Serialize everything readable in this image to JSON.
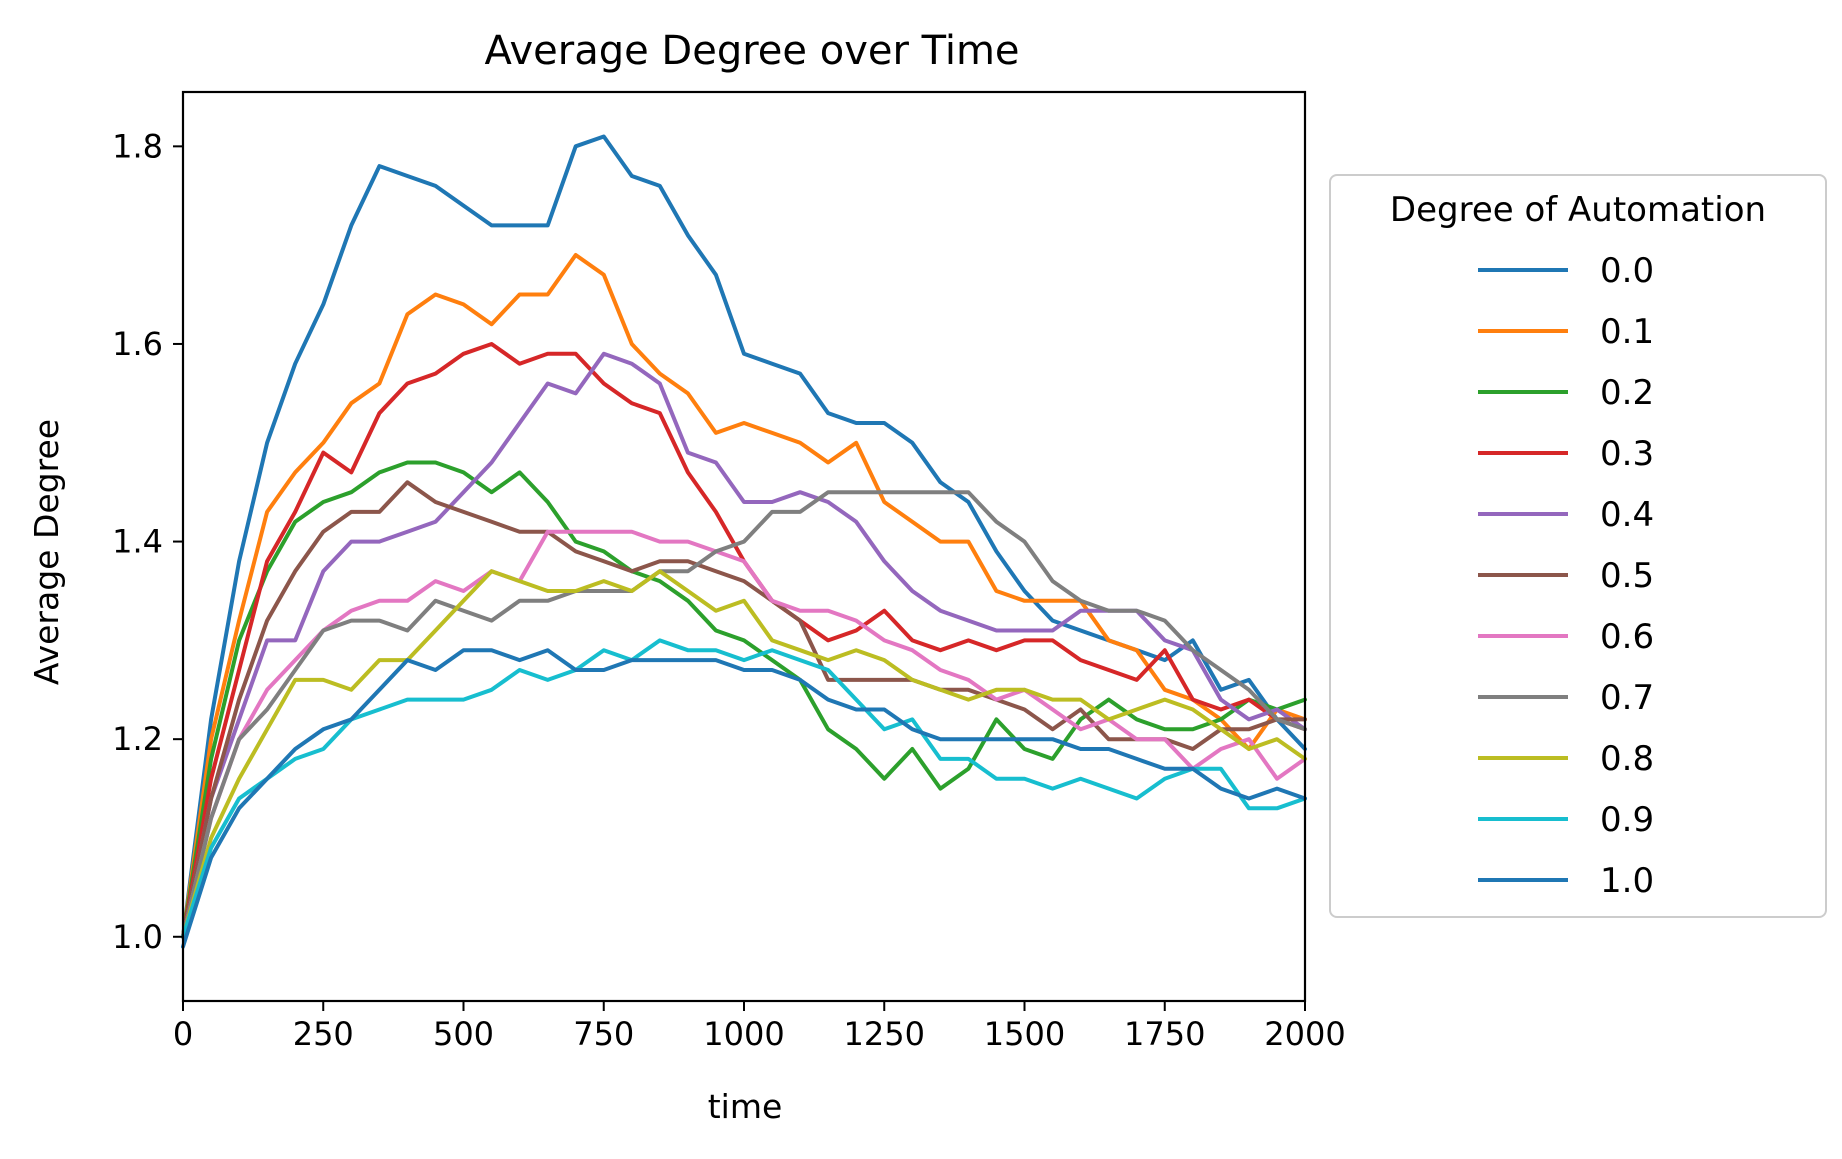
{
  "chart_data": {
    "type": "line",
    "title": "Average Degree over Time",
    "xlabel": "time",
    "ylabel": "Average Degree",
    "xlim": [
      0,
      2000
    ],
    "ylim": [
      0.935,
      1.855
    ],
    "xticks": [
      0,
      250,
      500,
      750,
      1000,
      1250,
      1500,
      1750,
      2000
    ],
    "xtick_labels": [
      "0",
      "250",
      "500",
      "750",
      "1000",
      "1250",
      "1500",
      "1750",
      "2000"
    ],
    "yticks": [
      1.0,
      1.2,
      1.4,
      1.6,
      1.8
    ],
    "ytick_labels": [
      "1.0",
      "1.2",
      "1.4",
      "1.6",
      "1.8"
    ],
    "grid": false,
    "legend": {
      "title": "Degree of Automation",
      "placement": "outside-right"
    },
    "x": [
      0,
      50,
      100,
      150,
      200,
      250,
      300,
      350,
      400,
      450,
      500,
      550,
      600,
      650,
      700,
      750,
      800,
      850,
      900,
      950,
      1000,
      1050,
      1100,
      1150,
      1200,
      1250,
      1300,
      1350,
      1400,
      1450,
      1500,
      1550,
      1600,
      1650,
      1700,
      1750,
      1800,
      1850,
      1900,
      1950,
      2000
    ],
    "series": [
      {
        "name": "0.0",
        "color": "#1f77b4",
        "values": [
          1.0,
          1.22,
          1.38,
          1.5,
          1.58,
          1.64,
          1.72,
          1.78,
          1.77,
          1.76,
          1.74,
          1.72,
          1.72,
          1.72,
          1.8,
          1.81,
          1.77,
          1.76,
          1.71,
          1.67,
          1.59,
          1.58,
          1.57,
          1.53,
          1.52,
          1.52,
          1.5,
          1.46,
          1.44,
          1.39,
          1.35,
          1.32,
          1.31,
          1.3,
          1.29,
          1.28,
          1.3,
          1.25,
          1.26,
          1.22,
          1.19
        ]
      },
      {
        "name": "0.1",
        "color": "#ff7f0e",
        "values": [
          1.0,
          1.2,
          1.32,
          1.43,
          1.47,
          1.5,
          1.54,
          1.56,
          1.63,
          1.65,
          1.64,
          1.62,
          1.65,
          1.65,
          1.69,
          1.67,
          1.6,
          1.57,
          1.55,
          1.51,
          1.52,
          1.51,
          1.5,
          1.48,
          1.5,
          1.44,
          1.42,
          1.4,
          1.4,
          1.35,
          1.34,
          1.34,
          1.34,
          1.3,
          1.29,
          1.25,
          1.24,
          1.22,
          1.19,
          1.23,
          1.22
        ]
      },
      {
        "name": "0.2",
        "color": "#2ca02c",
        "values": [
          1.0,
          1.18,
          1.3,
          1.37,
          1.42,
          1.44,
          1.45,
          1.47,
          1.48,
          1.48,
          1.47,
          1.45,
          1.47,
          1.44,
          1.4,
          1.39,
          1.37,
          1.36,
          1.34,
          1.31,
          1.3,
          1.28,
          1.26,
          1.21,
          1.19,
          1.16,
          1.19,
          1.15,
          1.17,
          1.22,
          1.19,
          1.18,
          1.22,
          1.24,
          1.22,
          1.21,
          1.21,
          1.22,
          1.24,
          1.23,
          1.24
        ]
      },
      {
        "name": "0.3",
        "color": "#d62728",
        "values": [
          1.0,
          1.16,
          1.27,
          1.38,
          1.43,
          1.49,
          1.47,
          1.53,
          1.56,
          1.57,
          1.59,
          1.6,
          1.58,
          1.59,
          1.59,
          1.56,
          1.54,
          1.53,
          1.47,
          1.43,
          1.38,
          1.34,
          1.32,
          1.3,
          1.31,
          1.33,
          1.3,
          1.29,
          1.3,
          1.29,
          1.3,
          1.3,
          1.28,
          1.27,
          1.26,
          1.29,
          1.24,
          1.23,
          1.24,
          1.22,
          1.21
        ]
      },
      {
        "name": "0.4",
        "color": "#9467bd",
        "values": [
          1.0,
          1.14,
          1.22,
          1.3,
          1.3,
          1.37,
          1.4,
          1.4,
          1.41,
          1.42,
          1.45,
          1.48,
          1.52,
          1.56,
          1.55,
          1.59,
          1.58,
          1.56,
          1.49,
          1.48,
          1.44,
          1.44,
          1.45,
          1.44,
          1.42,
          1.38,
          1.35,
          1.33,
          1.32,
          1.31,
          1.31,
          1.31,
          1.33,
          1.33,
          1.33,
          1.3,
          1.29,
          1.24,
          1.22,
          1.23,
          1.21
        ]
      },
      {
        "name": "0.5",
        "color": "#8c564b",
        "values": [
          1.0,
          1.14,
          1.24,
          1.32,
          1.37,
          1.41,
          1.43,
          1.43,
          1.46,
          1.44,
          1.43,
          1.42,
          1.41,
          1.41,
          1.39,
          1.38,
          1.37,
          1.38,
          1.38,
          1.37,
          1.36,
          1.34,
          1.32,
          1.26,
          1.26,
          1.26,
          1.26,
          1.25,
          1.25,
          1.24,
          1.23,
          1.21,
          1.23,
          1.2,
          1.2,
          1.2,
          1.19,
          1.21,
          1.21,
          1.22,
          1.22
        ]
      },
      {
        "name": "0.6",
        "color": "#e377c2",
        "values": [
          1.0,
          1.12,
          1.2,
          1.25,
          1.28,
          1.31,
          1.33,
          1.34,
          1.34,
          1.36,
          1.35,
          1.37,
          1.36,
          1.41,
          1.41,
          1.41,
          1.41,
          1.4,
          1.4,
          1.39,
          1.38,
          1.34,
          1.33,
          1.33,
          1.32,
          1.3,
          1.29,
          1.27,
          1.26,
          1.24,
          1.25,
          1.23,
          1.21,
          1.22,
          1.2,
          1.2,
          1.17,
          1.19,
          1.2,
          1.16,
          1.18
        ]
      },
      {
        "name": "0.7",
        "color": "#7f7f7f",
        "values": [
          1.0,
          1.12,
          1.2,
          1.23,
          1.27,
          1.31,
          1.32,
          1.32,
          1.31,
          1.34,
          1.33,
          1.32,
          1.34,
          1.34,
          1.35,
          1.35,
          1.35,
          1.37,
          1.37,
          1.39,
          1.4,
          1.43,
          1.43,
          1.45,
          1.45,
          1.45,
          1.45,
          1.45,
          1.45,
          1.42,
          1.4,
          1.36,
          1.34,
          1.33,
          1.33,
          1.32,
          1.29,
          1.27,
          1.25,
          1.22,
          1.21
        ]
      },
      {
        "name": "0.8",
        "color": "#bcbd22",
        "values": [
          1.0,
          1.1,
          1.16,
          1.21,
          1.26,
          1.26,
          1.25,
          1.28,
          1.28,
          1.31,
          1.34,
          1.37,
          1.36,
          1.35,
          1.35,
          1.36,
          1.35,
          1.37,
          1.35,
          1.33,
          1.34,
          1.3,
          1.29,
          1.28,
          1.29,
          1.28,
          1.26,
          1.25,
          1.24,
          1.25,
          1.25,
          1.24,
          1.24,
          1.22,
          1.23,
          1.24,
          1.23,
          1.21,
          1.19,
          1.2,
          1.18
        ]
      },
      {
        "name": "0.9",
        "color": "#17becf",
        "values": [
          1.0,
          1.09,
          1.14,
          1.16,
          1.18,
          1.19,
          1.22,
          1.23,
          1.24,
          1.24,
          1.24,
          1.25,
          1.27,
          1.26,
          1.27,
          1.29,
          1.28,
          1.3,
          1.29,
          1.29,
          1.28,
          1.29,
          1.28,
          1.27,
          1.24,
          1.21,
          1.22,
          1.18,
          1.18,
          1.16,
          1.16,
          1.15,
          1.16,
          1.15,
          1.14,
          1.16,
          1.17,
          1.17,
          1.13,
          1.13,
          1.14
        ]
      },
      {
        "name": "1.0",
        "color": "#1f77b4",
        "values": [
          0.99,
          1.08,
          1.13,
          1.16,
          1.19,
          1.21,
          1.22,
          1.25,
          1.28,
          1.27,
          1.29,
          1.29,
          1.28,
          1.29,
          1.27,
          1.27,
          1.28,
          1.28,
          1.28,
          1.28,
          1.27,
          1.27,
          1.26,
          1.24,
          1.23,
          1.23,
          1.21,
          1.2,
          1.2,
          1.2,
          1.2,
          1.2,
          1.19,
          1.19,
          1.18,
          1.17,
          1.17,
          1.15,
          1.14,
          1.15,
          1.14
        ]
      }
    ]
  }
}
